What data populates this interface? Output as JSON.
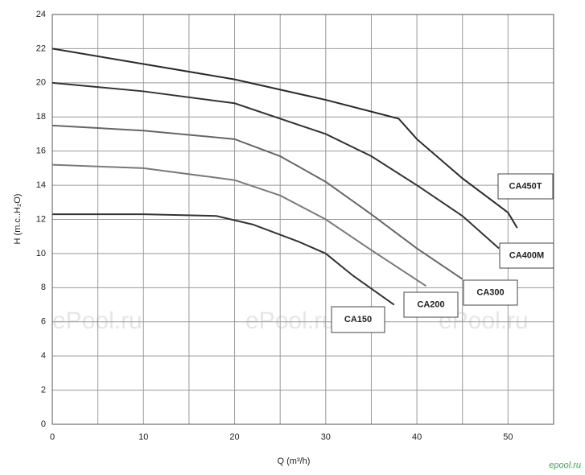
{
  "chart_data": {
    "type": "line",
    "x_label": "Q (m³/h)",
    "y_label": "H (m.c..H₂O)",
    "xlim": [
      0,
      55
    ],
    "xticks": [
      0,
      10,
      20,
      30,
      40,
      50
    ],
    "minor_xticks": [
      5,
      15,
      25,
      35,
      45,
      55
    ],
    "ylim": [
      0,
      24
    ],
    "yticks": [
      0,
      2,
      4,
      6,
      8,
      10,
      12,
      14,
      16,
      18,
      20,
      22,
      24
    ],
    "grid": true,
    "series": [
      {
        "name": "CA450T",
        "color": "#2a2a2a",
        "x": [
          0,
          10,
          20,
          30,
          38,
          40,
          45,
          50,
          51
        ],
        "values": [
          22,
          21.1,
          20.2,
          19,
          17.9,
          16.7,
          14.4,
          12.4,
          11.5
        ]
      },
      {
        "name": "CA400M",
        "color": "#333333",
        "x": [
          0,
          10,
          20,
          30,
          35,
          40,
          45,
          49
        ],
        "values": [
          20,
          19.5,
          18.8,
          17,
          15.7,
          14,
          12.2,
          10.3
        ]
      },
      {
        "name": "CA300",
        "color": "#666666",
        "x": [
          0,
          10,
          20,
          25,
          30,
          35,
          40,
          45
        ],
        "values": [
          17.5,
          17.2,
          16.7,
          15.7,
          14.2,
          12.3,
          10.3,
          8.5
        ]
      },
      {
        "name": "CA200",
        "color": "#7a7a7a",
        "x": [
          0,
          10,
          20,
          25,
          30,
          35,
          41
        ],
        "values": [
          15.2,
          15,
          14.3,
          13.4,
          12,
          10.2,
          8.1
        ]
      },
      {
        "name": "CA150",
        "color": "#333333",
        "x": [
          0,
          10,
          18,
          22,
          27,
          30,
          33,
          37.5
        ],
        "values": [
          12.3,
          12.3,
          12.2,
          11.7,
          10.7,
          10,
          8.7,
          7
        ]
      }
    ],
    "watermarks": [
      "ePool.ru",
      "ePool.ru",
      "ePool.ru"
    ],
    "logo": "epool.ru"
  }
}
